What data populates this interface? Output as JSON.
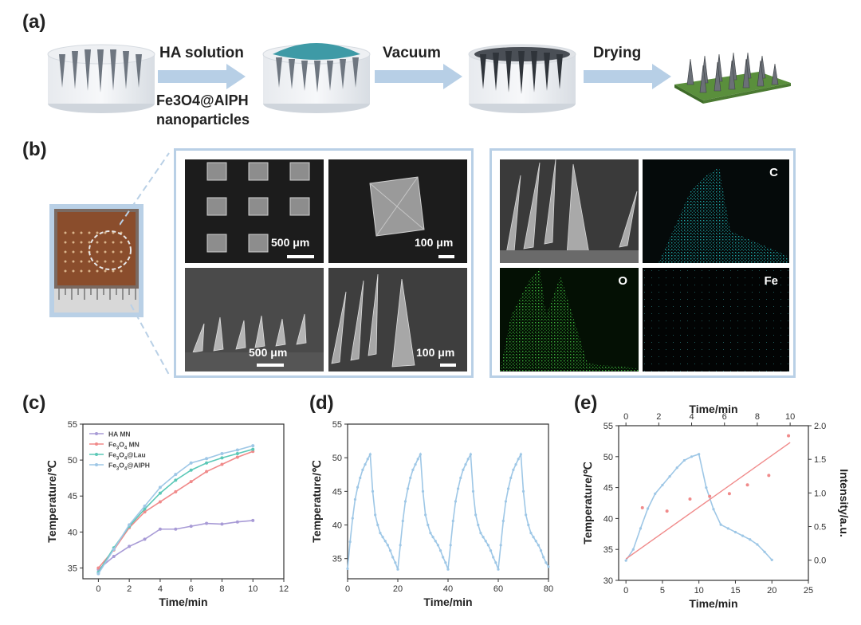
{
  "labels": {
    "a": "(a)",
    "b": "(b)",
    "c": "(c)",
    "d": "(d)",
    "e": "(e)"
  },
  "schematic": {
    "step1": "HA solution",
    "step1_sub_line1": "Fe3O4@AlPH",
    "step1_sub_line2": "nanoparticles",
    "step2": "Vacuum",
    "step3": "Drying"
  },
  "sem": {
    "scale_500_top": "500 μm",
    "scale_100_top": "100 μm",
    "scale_500_bottom": "500 μm",
    "scale_100_bottom": "100 μm",
    "map_c": "C",
    "map_o": "O",
    "map_fe": "Fe"
  },
  "colors": {
    "frame": "#b9d0e6",
    "arrow": "#b7cfe6",
    "ha": "#a89bd6",
    "fe3o4": "#f08a8a",
    "lau": "#5bc8b7",
    "alph": "#9ec7e6",
    "intensity": "#f08080"
  },
  "chart_data": [
    {
      "id": "c",
      "type": "line",
      "xlabel": "Time/min",
      "ylabel": "Temperature/℃",
      "xlim": [
        -1,
        12
      ],
      "ylim": [
        33.5,
        55
      ],
      "xticks": [
        0,
        2,
        4,
        6,
        8,
        10,
        12
      ],
      "yticks": [
        35,
        40,
        45,
        50,
        55
      ],
      "legend": "top-left",
      "series": [
        {
          "name": "HA MN",
          "color": "#a89bd6",
          "x": [
            0,
            1,
            2,
            3,
            4,
            5,
            6,
            7,
            8,
            9,
            10
          ],
          "y": [
            34.8,
            36.6,
            38.0,
            39.0,
            40.4,
            40.4,
            40.8,
            41.2,
            41.1,
            41.4,
            41.6
          ]
        },
        {
          "name": "Fe3O4 MN",
          "color": "#f08a8a",
          "x": [
            0,
            1,
            2,
            3,
            4,
            5,
            6,
            7,
            8,
            9,
            10
          ],
          "y": [
            35.0,
            37.5,
            40.6,
            42.8,
            44.2,
            45.6,
            47.0,
            48.4,
            49.4,
            50.4,
            51.2
          ]
        },
        {
          "name": "Fe3O4@Lau",
          "color": "#5bc8b7",
          "x": [
            0,
            1,
            2,
            3,
            4,
            5,
            6,
            7,
            8,
            9,
            10
          ],
          "y": [
            34.4,
            37.8,
            40.8,
            43.2,
            45.4,
            47.2,
            48.6,
            49.6,
            50.3,
            50.9,
            51.5
          ]
        },
        {
          "name": "Fe3O4@AlPH",
          "color": "#9ec7e6",
          "x": [
            0,
            1,
            2,
            3,
            4,
            5,
            6,
            7,
            8,
            9,
            10
          ],
          "y": [
            34.2,
            37.6,
            41.0,
            43.6,
            46.2,
            48.0,
            49.6,
            50.2,
            50.9,
            51.4,
            52.0
          ]
        }
      ]
    },
    {
      "id": "d",
      "type": "line",
      "xlabel": "Time/min",
      "ylabel": "Temperature/℃",
      "xlim": [
        0,
        80
      ],
      "ylim": [
        32,
        55
      ],
      "xticks": [
        0,
        20,
        40,
        60,
        80
      ],
      "yticks": [
        35,
        40,
        45,
        50,
        55
      ],
      "series": [
        {
          "color": "#9ec7e6",
          "x": [
            0,
            1,
            2,
            3,
            4,
            5,
            6,
            7,
            8,
            9,
            10,
            11,
            12,
            13,
            14,
            15,
            16,
            17,
            18,
            19,
            20,
            21,
            22,
            23,
            24,
            25,
            26,
            27,
            28,
            29,
            30,
            31,
            32,
            33,
            34,
            35,
            36,
            37,
            38,
            39,
            40,
            41,
            42,
            43,
            44,
            45,
            46,
            47,
            48,
            49,
            50,
            51,
            52,
            53,
            54,
            55,
            56,
            57,
            58,
            59,
            60,
            61,
            62,
            63,
            64,
            65,
            66,
            67,
            68,
            69,
            70,
            71,
            72,
            73,
            74,
            75,
            76,
            77,
            78,
            79,
            80
          ],
          "y": [
            33.5,
            37.5,
            41.0,
            43.8,
            45.6,
            47.0,
            48.2,
            49.0,
            49.8,
            50.5,
            45.0,
            41.5,
            40.0,
            38.8,
            38.2,
            37.6,
            37.0,
            36.2,
            35.2,
            34.4,
            33.4,
            37.0,
            40.6,
            43.5,
            45.4,
            47.0,
            48.2,
            49.0,
            49.8,
            50.5,
            45.0,
            41.5,
            40.0,
            38.8,
            38.2,
            37.6,
            37.0,
            36.2,
            35.2,
            34.4,
            33.4,
            37.0,
            40.6,
            43.5,
            45.4,
            47.0,
            48.2,
            49.0,
            49.8,
            50.5,
            45.0,
            41.5,
            40.0,
            38.8,
            38.2,
            37.6,
            37.0,
            36.2,
            35.2,
            34.4,
            33.4,
            37.0,
            40.6,
            43.5,
            45.4,
            47.0,
            48.2,
            49.0,
            49.8,
            50.5,
            45.0,
            41.5,
            40.0,
            38.8,
            38.2,
            37.6,
            37.0,
            36.2,
            35.2,
            34.4,
            33.8
          ]
        }
      ]
    },
    {
      "id": "e",
      "type": "line",
      "xlabel": "Time/min",
      "ylabel": "Temperature/℃",
      "xlabel_top": "Time/min",
      "ylabel_right": "Intensity/a.u.",
      "xlim": [
        -1,
        25
      ],
      "ylim": [
        30,
        55
      ],
      "xlim_top": [
        -0.4444,
        11.1111
      ],
      "ylim_right": [
        -0.3,
        2.0
      ],
      "xticks": [
        0,
        5,
        10,
        15,
        20,
        25
      ],
      "yticks": [
        30,
        35,
        40,
        45,
        50,
        55
      ],
      "xticks_top": [
        0,
        2,
        4,
        6,
        8,
        10
      ],
      "yticks_right": [
        0.0,
        0.5,
        1.0,
        1.5,
        2.0
      ],
      "temperature": {
        "color": "#9ec7e6",
        "x": [
          0,
          1,
          2,
          3,
          4,
          5,
          6,
          7,
          8,
          9,
          10,
          11,
          12,
          13,
          14,
          15,
          16,
          17,
          18,
          19,
          20
        ],
        "y": [
          33.2,
          35.0,
          38.4,
          41.6,
          44.0,
          45.4,
          46.8,
          48.2,
          49.4,
          50.0,
          50.4,
          45.0,
          41.5,
          39.0,
          38.4,
          37.8,
          37.2,
          36.6,
          35.8,
          34.6,
          33.3
        ]
      },
      "intensity_points": {
        "color": "#f08a8a",
        "x": [
          1.0,
          2.5,
          3.9,
          5.1,
          6.3,
          7.4,
          8.7,
          9.9
        ],
        "y": [
          0.78,
          0.73,
          0.91,
          0.95,
          0.99,
          1.12,
          1.26,
          1.85
        ]
      },
      "intensity_fit": {
        "color": "#f08a8a",
        "x": [
          0,
          10
        ],
        "y": [
          0.02,
          1.75
        ]
      }
    }
  ]
}
